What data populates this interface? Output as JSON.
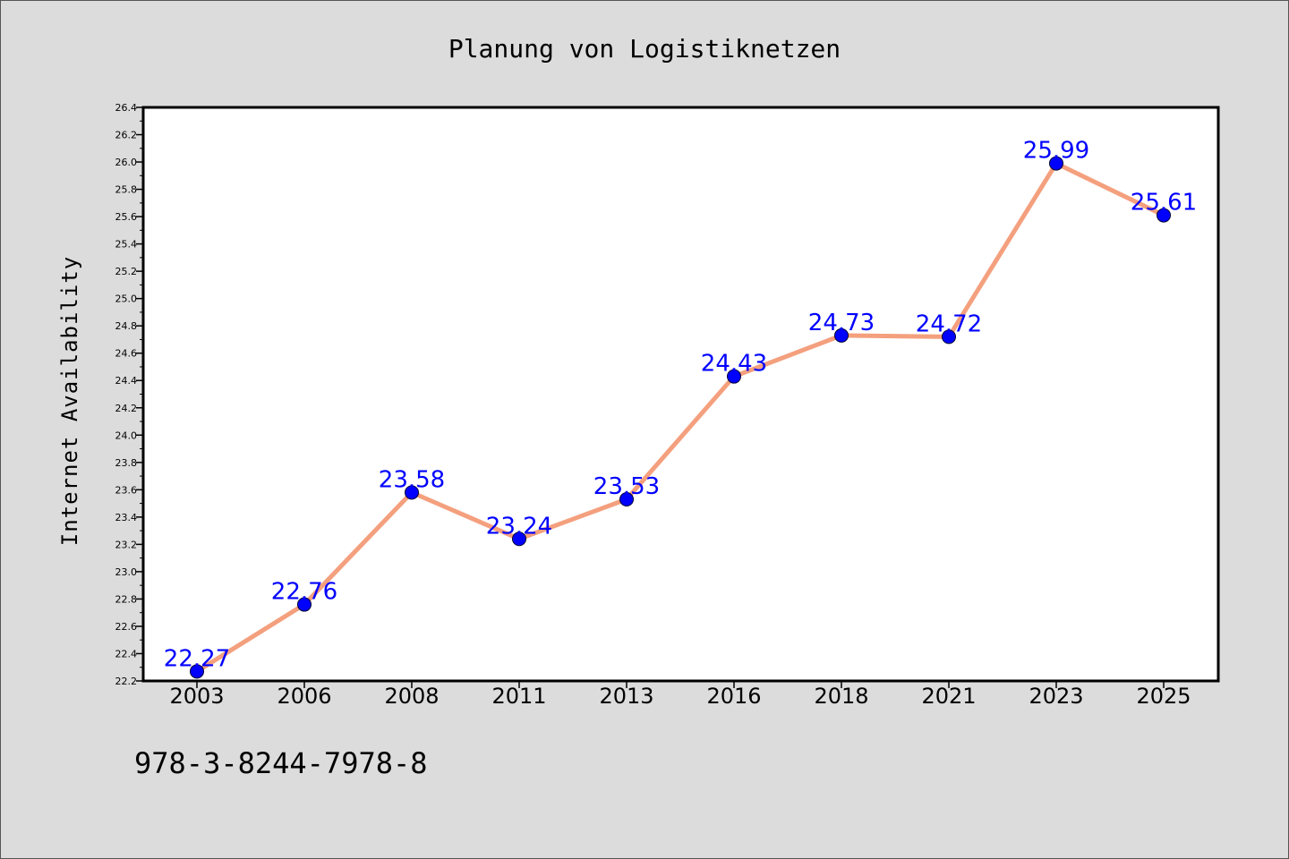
{
  "footer": {
    "note": "978-3-8244-7978-8"
  },
  "colors": {
    "background": "#dcdcdc",
    "plot_background": "#ffffff",
    "line": "#f4a07e",
    "marker": "#0000ff",
    "data_label": "#0000ff"
  },
  "chart_data": {
    "type": "line",
    "title": "Planung von Logistiknetzen",
    "xlabel": "",
    "ylabel": "Internet Availability",
    "categories": [
      "2003",
      "2006",
      "2008",
      "2011",
      "2013",
      "2016",
      "2018",
      "2021",
      "2023",
      "2025"
    ],
    "series": [
      {
        "values": [
          22.27,
          22.76,
          23.58,
          23.24,
          23.53,
          24.43,
          24.73,
          24.72,
          25.99,
          25.61
        ]
      }
    ],
    "data_labels": [
      "22.27",
      "22.76",
      "23.58",
      "23.24",
      "23.53",
      "24.43",
      "24.73",
      "24.72",
      "25.99",
      "25.61"
    ],
    "ylim": [
      22.2,
      26.4
    ],
    "yticks": [
      "22.2",
      "22.4",
      "22.6",
      "22.8",
      "23.0",
      "23.2",
      "23.4",
      "23.6",
      "23.8",
      "24.0",
      "24.2",
      "24.4",
      "24.6",
      "24.8",
      "25.0",
      "25.2",
      "25.4",
      "25.6",
      "25.8",
      "26.0",
      "26.2",
      "26.4"
    ],
    "grid": false,
    "legend": false
  }
}
